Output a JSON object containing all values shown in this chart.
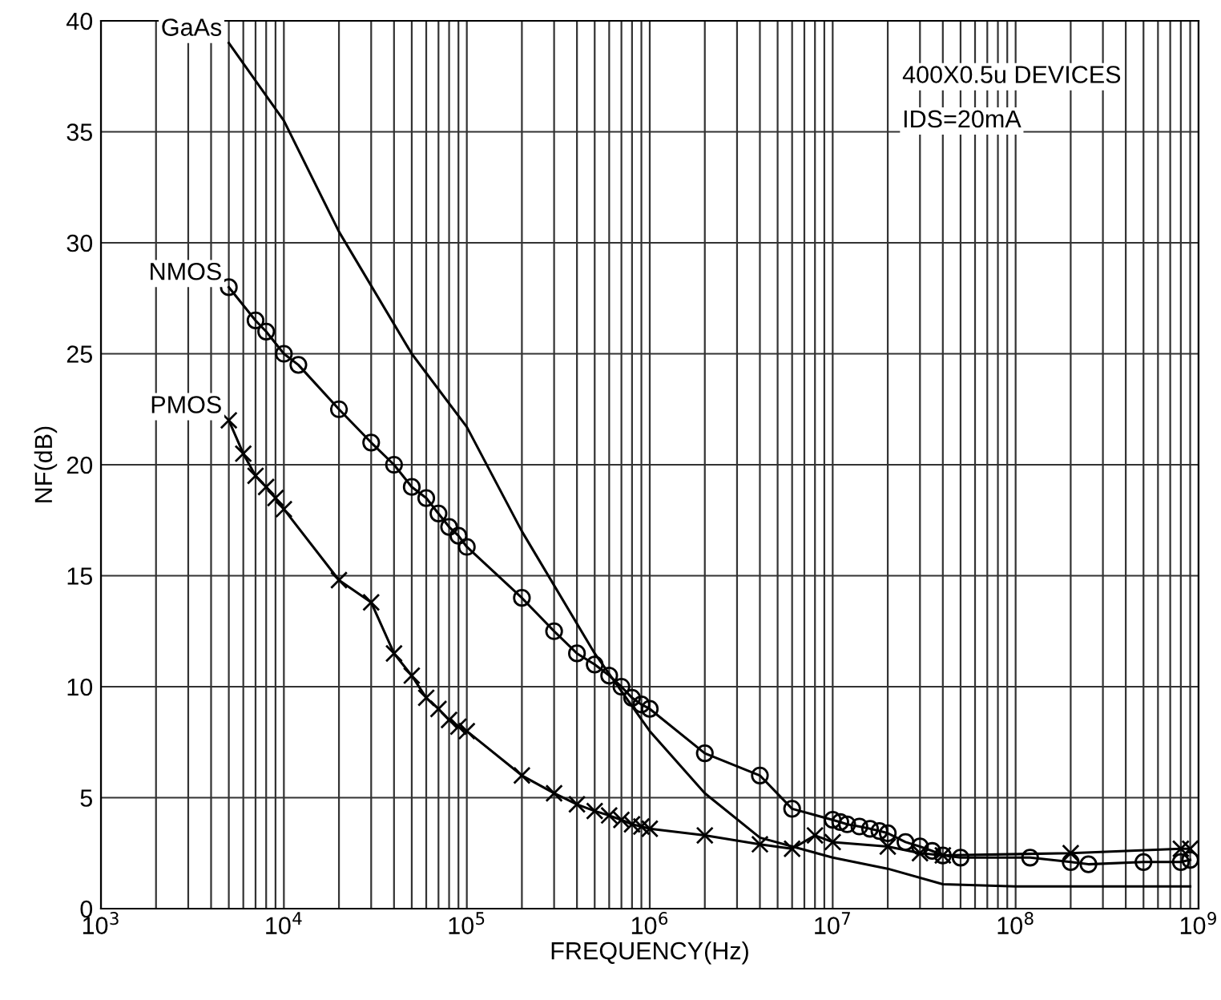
{
  "chart_data": {
    "type": "line",
    "xlabel": "FREQUENCY(Hz)",
    "ylabel": "NF(dB)",
    "log": "x",
    "grid": true,
    "legend": false,
    "xlim": [
      1000,
      1000000000
    ],
    "ylim": [
      0,
      40
    ],
    "xticks": [
      {
        "value": 1000,
        "label": "10$^{3}$"
      },
      {
        "value": 10000,
        "label": "10$^{4}$"
      },
      {
        "value": 100000,
        "label": "10$^{5}$"
      },
      {
        "value": 1000000,
        "label": "10$^{6}$"
      },
      {
        "value": 10000000,
        "label": "10$^{7}$"
      },
      {
        "value": 100000000,
        "label": "10$^{8}$"
      },
      {
        "value": 1000000000,
        "label": "10$^{9}$"
      }
    ],
    "yticks": [
      0,
      5,
      10,
      15,
      20,
      25,
      30,
      35,
      40
    ],
    "annotations": [
      "400X0.5u DEVICES",
      "IDS=20mA"
    ],
    "series": [
      {
        "name": "GaAs",
        "color": "#000000",
        "marker": "none",
        "x": [
          5000,
          10000,
          20000,
          50000,
          100000,
          200000,
          500000,
          1000000,
          2000000,
          4000000,
          10000000,
          20000000,
          40000000,
          100000000,
          900000000
        ],
        "values": [
          39,
          35.5,
          30.5,
          25,
          21.7,
          17,
          11.5,
          8,
          5.2,
          3.2,
          2.3,
          1.8,
          1.1,
          1.0,
          1.0
        ]
      },
      {
        "name": "NMOS",
        "color": "#000000",
        "marker": "circle",
        "x": [
          5000,
          7000,
          8000,
          10000,
          12000,
          20000,
          30000,
          40000,
          50000,
          60000,
          70000,
          80000,
          90000,
          100000,
          200000,
          300000,
          400000,
          500000,
          600000,
          700000,
          800000,
          900000,
          1000000,
          2000000,
          4000000,
          6000000,
          10000000,
          11000000,
          12000000,
          14000000,
          16000000,
          18000000,
          20000000,
          25000000,
          30000000,
          35000000,
          40000000,
          50000000,
          120000000,
          200000000,
          250000000,
          500000000,
          800000000,
          900000000
        ],
        "values": [
          28,
          26.5,
          26,
          25,
          24.5,
          22.5,
          21,
          20,
          19,
          18.5,
          17.8,
          17.2,
          16.8,
          16.3,
          14,
          12.5,
          11.5,
          11,
          10.5,
          10,
          9.5,
          9.2,
          9,
          7,
          6,
          4.5,
          4,
          3.9,
          3.8,
          3.7,
          3.6,
          3.5,
          3.4,
          3.0,
          2.8,
          2.6,
          2.4,
          2.3,
          2.3,
          2.1,
          2.0,
          2.1,
          2.1,
          2.2
        ]
      },
      {
        "name": "PMOS",
        "color": "#000000",
        "marker": "cross",
        "x": [
          5000,
          6000,
          7000,
          8000,
          9000,
          10000,
          20000,
          30000,
          40000,
          50000,
          60000,
          70000,
          80000,
          90000,
          100000,
          200000,
          300000,
          400000,
          500000,
          600000,
          700000,
          800000,
          900000,
          1000000,
          2000000,
          4000000,
          6000000,
          8000000,
          10000000,
          20000000,
          30000000,
          40000000,
          200000000,
          800000000,
          900000000
        ],
        "values": [
          22,
          20.5,
          19.5,
          19,
          18.5,
          18,
          14.8,
          13.8,
          11.5,
          10.5,
          9.5,
          9,
          8.5,
          8.2,
          8,
          6,
          5.2,
          4.7,
          4.4,
          4.2,
          4,
          3.8,
          3.7,
          3.6,
          3.3,
          2.9,
          2.7,
          3.3,
          3,
          2.8,
          2.5,
          2.4,
          2.5,
          2.7,
          2.7
        ]
      }
    ]
  }
}
